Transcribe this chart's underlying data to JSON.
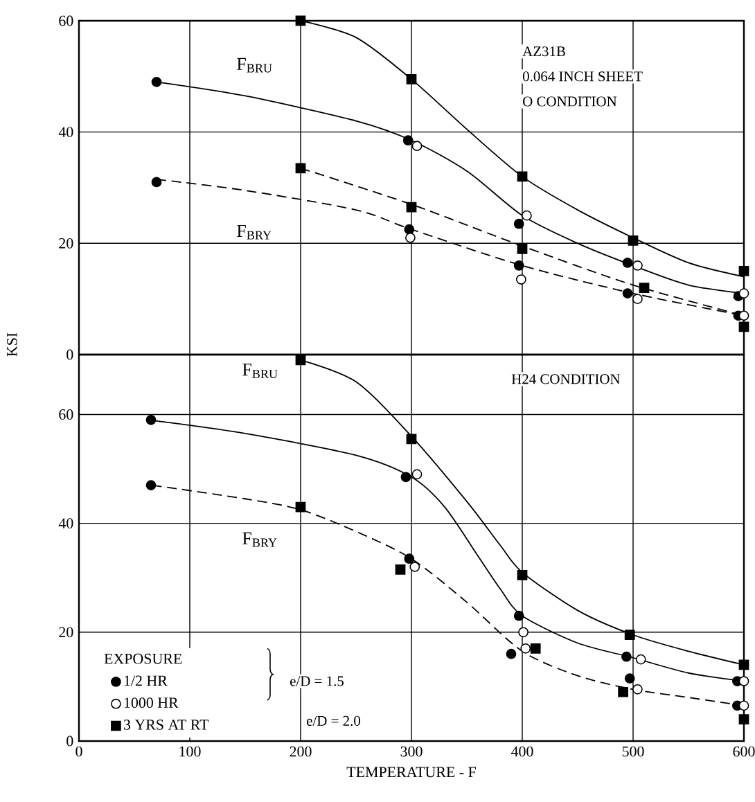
{
  "chart_data": [
    {
      "type": "scatter",
      "ylabel": "KSI",
      "xlim": [
        0,
        600
      ],
      "ylim": [
        0,
        60
      ],
      "xticks": [
        0,
        100,
        200,
        300,
        400,
        500,
        600
      ],
      "yticks": [
        0,
        20,
        40,
        60
      ],
      "tick_labels": "y",
      "grid": true,
      "annotations": [
        "F$_{BRU}$",
        "F$_{BRY}$",
        "AZ31B",
        "0.064 INCH SHEET",
        "O CONDITION"
      ],
      "series": [
        {
          "marker": "circle",
          "color": "#000000",
          "x": [
            70,
            70,
            297,
            298,
            397,
            397,
            495,
            495,
            595,
            595
          ],
          "values": [
            49,
            31,
            38.5,
            22.5,
            23.5,
            16,
            16.5,
            11,
            10.5,
            7
          ]
        },
        {
          "marker": "circle",
          "color": "#ffffff",
          "x": [
            305,
            299,
            404,
            399,
            504,
            504,
            600,
            600
          ],
          "values": [
            37.5,
            21,
            25,
            13.5,
            16,
            10,
            11,
            7
          ]
        },
        {
          "marker": "square",
          "color": "#000000",
          "x": [
            200,
            300,
            300,
            200,
            400,
            400,
            500,
            510,
            600,
            600
          ],
          "values": [
            60,
            49.5,
            26.5,
            33.5,
            32,
            19,
            20.5,
            12,
            15,
            5
          ]
        },
        {
          "type": "line",
          "marker": "none",
          "line_style": "solid",
          "color": "#000000",
          "x": [
            200,
            250,
            300,
            350,
            400,
            450,
            500,
            550,
            600
          ],
          "values": [
            60,
            57,
            49.5,
            40.5,
            32,
            26,
            21,
            16.5,
            14
          ]
        },
        {
          "type": "line",
          "marker": "none",
          "line_style": "solid",
          "color": "#000000",
          "x": [
            70,
            150,
            250,
            300,
            350,
            400,
            450,
            500,
            550,
            600
          ],
          "values": [
            49,
            46.5,
            42,
            38.5,
            33,
            25,
            20,
            16,
            12.5,
            11
          ]
        },
        {
          "type": "line",
          "marker": "none",
          "line_style": "dashed",
          "color": "#000000",
          "x": [
            200,
            300,
            400,
            500,
            600
          ],
          "values": [
            33.5,
            27,
            19.5,
            12.5,
            7
          ]
        },
        {
          "type": "line",
          "marker": "none",
          "line_style": "dashed",
          "color": "#000000",
          "x": [
            70,
            150,
            250,
            300,
            400,
            500,
            600
          ],
          "values": [
            31.5,
            29.5,
            26,
            22.5,
            16,
            11,
            7
          ]
        }
      ]
    },
    {
      "type": "scatter",
      "xlabel": "TEMPERATURE - F",
      "xlim": [
        0,
        600
      ],
      "ylim": [
        0,
        71
      ],
      "xticks": [
        0,
        100,
        200,
        300,
        400,
        500,
        600
      ],
      "yticks": [
        0,
        20,
        40,
        60
      ],
      "grid": true,
      "legend": "bottom left",
      "legend_title": "EXPOSURE",
      "annotations": [
        "F$_{BRU}$",
        "F$_{BRY}$",
        "H24 CONDITION",
        "e/D = 1.5",
        "e/D = 2.0"
      ],
      "series": [
        {
          "name": "1/2 HR",
          "marker": "circle",
          "color": "#000000",
          "x": [
            65,
            65,
            295,
            298,
            397,
            390,
            494,
            497,
            594,
            594
          ],
          "values": [
            59,
            47,
            48.5,
            33.5,
            23,
            16,
            15.5,
            11.5,
            11,
            6.5
          ]
        },
        {
          "name": "1000 HR",
          "marker": "circle",
          "color": "#ffffff",
          "x": [
            305,
            303,
            401,
            403,
            507,
            504,
            600,
            600
          ],
          "values": [
            49,
            32,
            20,
            17,
            15,
            9.5,
            11,
            6.5
          ]
        },
        {
          "name": "3 YRS AT RT",
          "marker": "square",
          "color": "#000000",
          "x": [
            200,
            300,
            200,
            290,
            400,
            412,
            497,
            491,
            600,
            600
          ],
          "values": [
            70,
            55.5,
            43,
            31.5,
            30.5,
            17,
            19.5,
            9,
            14,
            4
          ]
        },
        {
          "type": "line",
          "marker": "none",
          "line_style": "solid",
          "color": "#000000",
          "x": [
            200,
            250,
            300,
            350,
            380,
            400,
            450,
            500,
            550,
            600
          ],
          "values": [
            70,
            66,
            56,
            44,
            36,
            31,
            24,
            19.5,
            16.5,
            14
          ]
        },
        {
          "type": "line",
          "marker": "none",
          "line_style": "solid",
          "color": "#000000",
          "x": [
            63,
            150,
            250,
            300,
            330,
            360,
            380,
            400,
            450,
            500,
            550,
            600
          ],
          "values": [
            59,
            56.5,
            52.5,
            48.5,
            43,
            34,
            28,
            23,
            18,
            15.3,
            12.5,
            11
          ]
        },
        {
          "type": "line",
          "marker": "none",
          "line_style": "dashed",
          "color": "#000000",
          "x": [
            66,
            150,
            200,
            250,
            300,
            350,
            400,
            450,
            500,
            550,
            600
          ],
          "values": [
            47,
            44.5,
            42.5,
            38.5,
            33.5,
            25.5,
            16.5,
            12,
            9.5,
            8,
            6.5
          ]
        }
      ]
    }
  ]
}
